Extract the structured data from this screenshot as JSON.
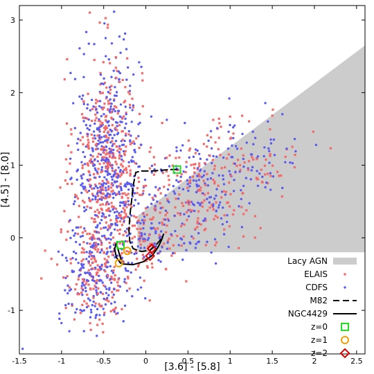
{
  "chart_data": {
    "type": "scatter",
    "xlabel": "[3.6] - [5.8]",
    "ylabel": "[4.5] - [8.0]",
    "xlim": [
      -1.5,
      2.6
    ],
    "ylim": [
      -1.6,
      3.2
    ],
    "x_ticks": [
      -1.5,
      -1,
      -0.5,
      0,
      0.5,
      1,
      1.5,
      2,
      2.5
    ],
    "x_tick_labels": [
      "-1.5",
      "-1",
      "-0.5",
      "0",
      "0.5",
      "1",
      "1.5",
      "2",
      "2.5"
    ],
    "y_ticks": [
      -1,
      0,
      1,
      2,
      3
    ],
    "y_tick_labels": [
      "-1",
      "0",
      "1",
      "2",
      "3"
    ],
    "agn_region": {
      "label": "Lacy AGN",
      "vertices": [
        [
          -0.1,
          -0.2
        ],
        [
          -0.1,
          0.3
        ],
        [
          2.6,
          2.65
        ],
        [
          2.6,
          -0.2
        ]
      ],
      "color": "#cccccc"
    },
    "series": [
      {
        "name": "ELAIS",
        "marker": "square",
        "color": "#f26a6a",
        "clusters": [
          {
            "center": [
              -0.45,
              1.0
            ],
            "spread": [
              0.2,
              0.75
            ],
            "count": 420
          },
          {
            "center": [
              -0.6,
              -0.55
            ],
            "spread": [
              0.22,
              0.35
            ],
            "count": 140
          },
          {
            "center": [
              0.55,
              0.55
            ],
            "spread": [
              0.35,
              0.35
            ],
            "count": 160
          },
          {
            "center": [
              1.2,
              1.15
            ],
            "spread": [
              0.35,
              0.3
            ],
            "count": 70
          },
          {
            "center": [
              0.0,
              0.0
            ],
            "spread": [
              0.2,
              0.25
            ],
            "count": 60
          }
        ]
      },
      {
        "name": "CDFS",
        "marker": "dot",
        "color": "#5b5bf0",
        "clusters": [
          {
            "center": [
              -0.45,
              1.0
            ],
            "spread": [
              0.2,
              0.75
            ],
            "count": 460
          },
          {
            "center": [
              -0.6,
              -0.55
            ],
            "spread": [
              0.22,
              0.35
            ],
            "count": 170
          },
          {
            "center": [
              0.55,
              0.55
            ],
            "spread": [
              0.35,
              0.35
            ],
            "count": 170
          },
          {
            "center": [
              1.2,
              1.15
            ],
            "spread": [
              0.35,
              0.3
            ],
            "count": 70
          },
          {
            "center": [
              0.0,
              0.0
            ],
            "spread": [
              0.2,
              0.25
            ],
            "count": 60
          }
        ]
      },
      {
        "name": "M82",
        "style": "dashed",
        "color": "#000000",
        "x": [
          0.37,
          0.28,
          0.18,
          0.06,
          -0.06,
          -0.12,
          -0.15,
          -0.17,
          -0.19,
          -0.2,
          -0.19,
          -0.15,
          -0.05,
          0.05,
          0.12,
          0.18
        ],
        "y": [
          0.94,
          0.94,
          0.93,
          0.92,
          0.92,
          0.9,
          0.72,
          0.5,
          0.3,
          0.1,
          -0.05,
          -0.15,
          -0.19,
          -0.17,
          -0.1,
          -0.02
        ]
      },
      {
        "name": "NGC4429",
        "style": "solid",
        "color": "#000000",
        "x": [
          -0.3,
          -0.35,
          -0.37,
          -0.35,
          -0.28,
          -0.15,
          -0.03,
          0.08,
          0.15,
          0.19,
          0.21
        ],
        "y": [
          -0.35,
          -0.27,
          -0.15,
          -0.08,
          -0.36,
          -0.37,
          -0.33,
          -0.24,
          -0.12,
          -0.02,
          0.05
        ]
      }
    ],
    "redshift_markers": [
      {
        "label": "z=0",
        "symbol": "square",
        "color": "#22dd22",
        "points": [
          [
            0.37,
            0.94
          ],
          [
            -0.3,
            -0.1
          ]
        ]
      },
      {
        "label": "z=1",
        "symbol": "circle",
        "color": "#f5a000",
        "points": [
          [
            -0.22,
            -0.18
          ],
          [
            -0.32,
            -0.35
          ]
        ]
      },
      {
        "label": "z=2",
        "symbol": "diamond",
        "color": "#dd0000",
        "points": [
          [
            0.07,
            -0.15
          ],
          [
            0.05,
            -0.25
          ]
        ]
      }
    ],
    "legend": {
      "position": "bottom-right",
      "entries": [
        "Lacy AGN",
        "ELAIS",
        "CDFS",
        "M82",
        "NGC4429",
        "z=0",
        "z=1",
        "z=2"
      ]
    }
  }
}
